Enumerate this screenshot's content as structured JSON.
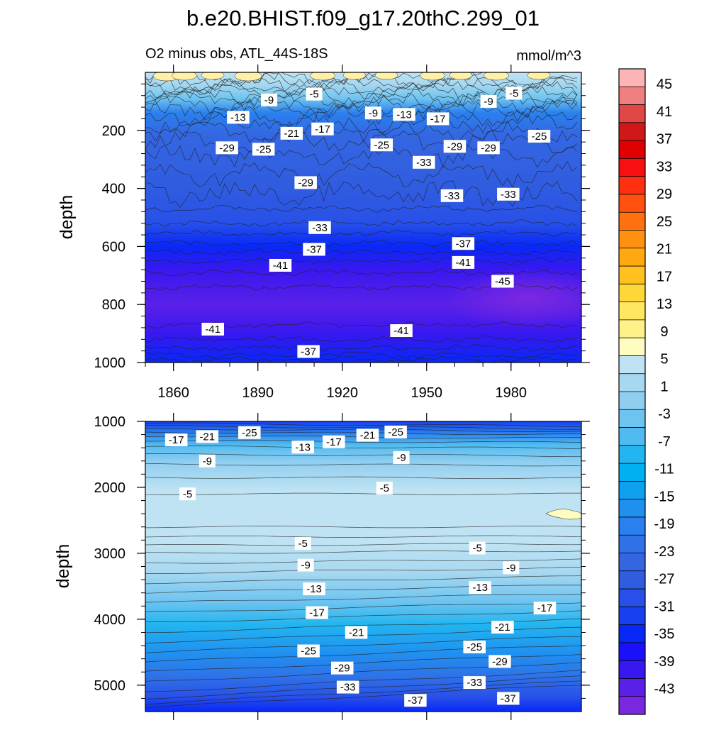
{
  "chart_data": {
    "type": "contour",
    "title": "b.e20.BHIST.f09_g17.20thC.299_01",
    "subtitle_left": "O2 minus obs, ATL_44S-18S",
    "units": "mmol/m^3",
    "colorbar": {
      "labels": [
        "45",
        "41",
        "37",
        "33",
        "29",
        "25",
        "21",
        "17",
        "13",
        "9",
        "5",
        "1",
        "-3",
        "-7",
        "-11",
        "-15",
        "-19",
        "-23",
        "-27",
        "-31",
        "-35",
        "-39",
        "-43"
      ],
      "colors": [
        "#fdb4b4",
        "#f08080",
        "#e04848",
        "#d01818",
        "#e00000",
        "#f81010",
        "#ff3010",
        "#ff5010",
        "#ff7010",
        "#ff9010",
        "#ffa810",
        "#ffc020",
        "#ffd838",
        "#ffe860",
        "#fff088",
        "#fffcc0",
        "#bfe3f3",
        "#a8d8f0",
        "#90cef0",
        "#6ec4f0",
        "#50bbf0",
        "#22b5f0",
        "#00b0f0",
        "#10a0f0",
        "#2090f0",
        "#2a80ee",
        "#2f72e8",
        "#3466e2",
        "#305ce0",
        "#2850e8",
        "#1840f0",
        "#0828f8",
        "#1a10fa",
        "#3818f0",
        "#5a20e8",
        "#7a28e0"
      ]
    },
    "panels": [
      {
        "name": "upper",
        "ylabel": "depth",
        "x_ticks": [
          "1860",
          "1890",
          "1920",
          "1950",
          "1980"
        ],
        "y_ticks": [
          "200",
          "400",
          "600",
          "800",
          "1000"
        ],
        "x_range": [
          1850,
          2005
        ],
        "y_range": [
          0,
          1000
        ],
        "contour_labels": [
          {
            "text": "-5",
            "x": 1910,
            "y": 75
          },
          {
            "text": "-9",
            "x": 1894,
            "y": 95
          },
          {
            "text": "-13",
            "x": 1883,
            "y": 155
          },
          {
            "text": "-9",
            "x": 1931,
            "y": 140
          },
          {
            "text": "-13",
            "x": 1942,
            "y": 145
          },
          {
            "text": "-17",
            "x": 1954,
            "y": 160
          },
          {
            "text": "-9",
            "x": 1972,
            "y": 100
          },
          {
            "text": "-5",
            "x": 1981,
            "y": 72
          },
          {
            "text": "-21",
            "x": 1902,
            "y": 210
          },
          {
            "text": "-17",
            "x": 1913,
            "y": 195
          },
          {
            "text": "-25",
            "x": 1892,
            "y": 265
          },
          {
            "text": "-29",
            "x": 1879,
            "y": 260
          },
          {
            "text": "-25",
            "x": 1934,
            "y": 250
          },
          {
            "text": "-33",
            "x": 1949,
            "y": 310
          },
          {
            "text": "-29",
            "x": 1960,
            "y": 255
          },
          {
            "text": "-29",
            "x": 1972,
            "y": 260
          },
          {
            "text": "-25",
            "x": 1990,
            "y": 220
          },
          {
            "text": "-29",
            "x": 1907,
            "y": 380
          },
          {
            "text": "-33",
            "x": 1959,
            "y": 425
          },
          {
            "text": "-33",
            "x": 1979,
            "y": 420
          },
          {
            "text": "-33",
            "x": 1912,
            "y": 535
          },
          {
            "text": "-37",
            "x": 1910,
            "y": 610
          },
          {
            "text": "-37",
            "x": 1963,
            "y": 590
          },
          {
            "text": "-41",
            "x": 1898,
            "y": 665
          },
          {
            "text": "-41",
            "x": 1963,
            "y": 655
          },
          {
            "text": "-45",
            "x": 1977,
            "y": 720
          },
          {
            "text": "-41",
            "x": 1874,
            "y": 885
          },
          {
            "text": "-41",
            "x": 1941,
            "y": 890
          },
          {
            "text": "-37",
            "x": 1908,
            "y": 962
          }
        ]
      },
      {
        "name": "lower",
        "ylabel": "depth",
        "y_ticks": [
          "1000",
          "2000",
          "3000",
          "4000",
          "5000"
        ],
        "x_range": [
          1850,
          2005
        ],
        "y_range": [
          1000,
          5400
        ],
        "contour_labels": [
          {
            "text": "-17",
            "x": 1861,
            "y": 1280
          },
          {
            "text": "-21",
            "x": 1872,
            "y": 1230
          },
          {
            "text": "-25",
            "x": 1887,
            "y": 1170
          },
          {
            "text": "-13",
            "x": 1906,
            "y": 1390
          },
          {
            "text": "-17",
            "x": 1917,
            "y": 1310
          },
          {
            "text": "-21",
            "x": 1929,
            "y": 1210
          },
          {
            "text": "-25",
            "x": 1939,
            "y": 1160
          },
          {
            "text": "-9",
            "x": 1872,
            "y": 1600
          },
          {
            "text": "-9",
            "x": 1941,
            "y": 1550
          },
          {
            "text": "-5",
            "x": 1865,
            "y": 2100
          },
          {
            "text": "-5",
            "x": 1935,
            "y": 2010
          },
          {
            "text": "-5",
            "x": 1906,
            "y": 2850
          },
          {
            "text": "-5",
            "x": 1968,
            "y": 2920
          },
          {
            "text": "-9",
            "x": 1907,
            "y": 3180
          },
          {
            "text": "-9",
            "x": 1980,
            "y": 3220
          },
          {
            "text": "-13",
            "x": 1910,
            "y": 3540
          },
          {
            "text": "-13",
            "x": 1969,
            "y": 3520
          },
          {
            "text": "-17",
            "x": 1911,
            "y": 3900
          },
          {
            "text": "-17",
            "x": 1992,
            "y": 3830
          },
          {
            "text": "-21",
            "x": 1925,
            "y": 4200
          },
          {
            "text": "-21",
            "x": 1977,
            "y": 4120
          },
          {
            "text": "-25",
            "x": 1908,
            "y": 4480
          },
          {
            "text": "-25",
            "x": 1967,
            "y": 4420
          },
          {
            "text": "-29",
            "x": 1920,
            "y": 4740
          },
          {
            "text": "-29",
            "x": 1976,
            "y": 4640
          },
          {
            "text": "-33",
            "x": 1922,
            "y": 5030
          },
          {
            "text": "-33",
            "x": 1967,
            "y": 4960
          },
          {
            "text": "-37",
            "x": 1946,
            "y": 5230
          },
          {
            "text": "-37",
            "x": 1979,
            "y": 5200
          }
        ]
      }
    ]
  }
}
